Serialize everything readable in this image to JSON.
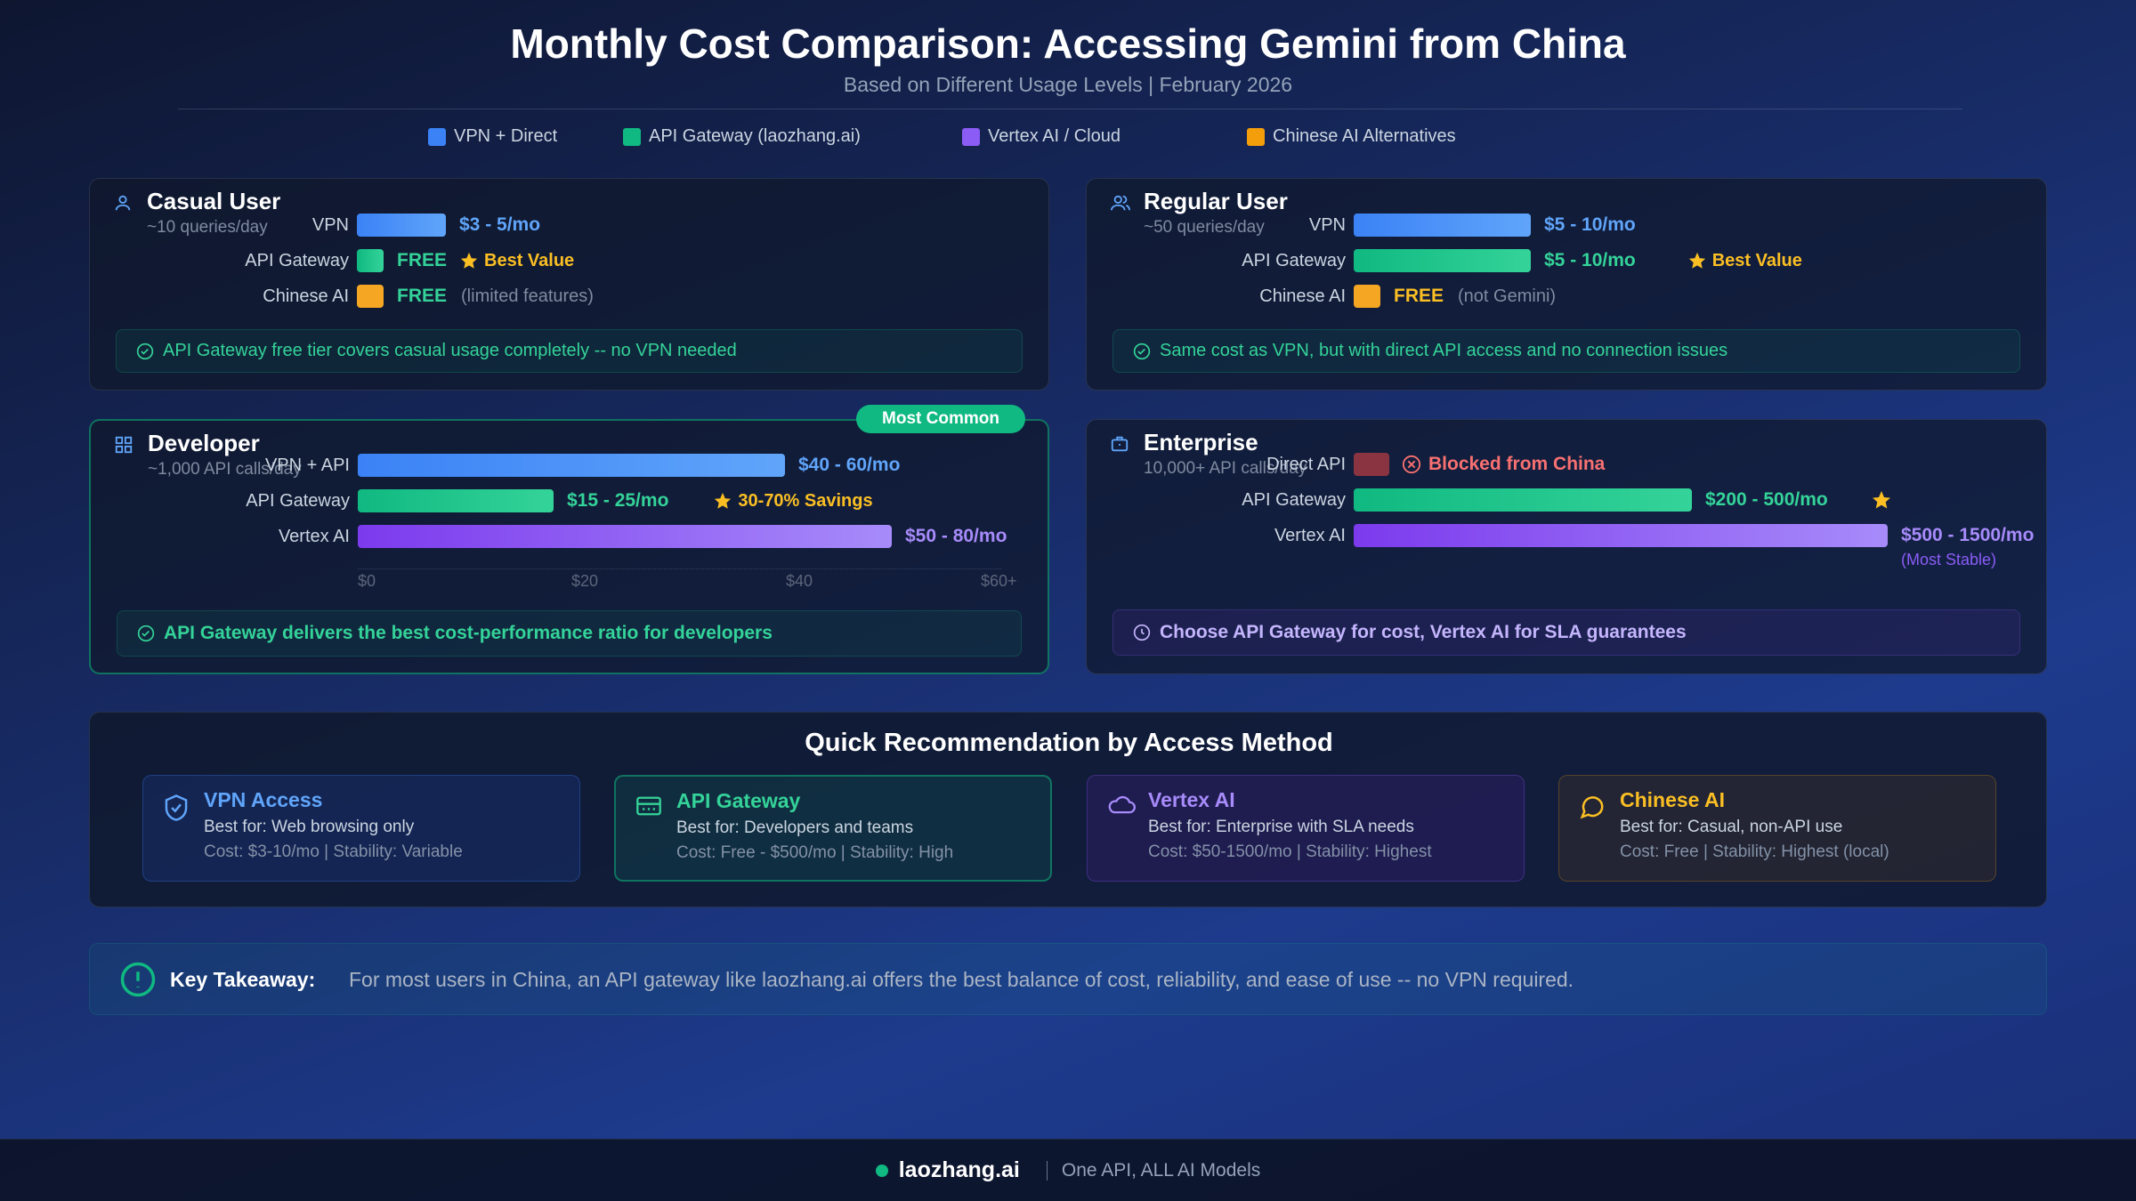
{
  "header": {
    "title": "Monthly Cost Comparison: Accessing Gemini from China",
    "subtitle": "Based on Different Usage Levels | February 2026"
  },
  "legend": [
    "VPN + Direct",
    "API Gateway (laozhang.ai)",
    "Vertex AI / Cloud",
    "Chinese AI Alternatives"
  ],
  "panels": [
    {
      "title": "Casual User",
      "subtitle": "~10 queries/day",
      "rows": [
        {
          "label": "VPN",
          "value": "$3 - 5/mo"
        },
        {
          "label": "API Gateway",
          "value": "FREE",
          "extra": "Best Value"
        },
        {
          "label": "Chinese AI",
          "value": "FREE",
          "extra": "(limited features)"
        }
      ],
      "note": "API Gateway free tier covers casual usage completely -- no VPN needed"
    },
    {
      "title": "Regular User",
      "subtitle": "~50 queries/day",
      "rows": [
        {
          "label": "VPN",
          "value": "$5 - 10/mo"
        },
        {
          "label": "API Gateway",
          "value": "$5 - 10/mo",
          "extra": "Best Value"
        },
        {
          "label": "Chinese AI",
          "value": "FREE",
          "extra": "(not Gemini)"
        }
      ],
      "note": "Same cost as VPN, but with direct API access and no connection issues"
    },
    {
      "title": "Developer",
      "subtitle": "~1,000 API calls/day",
      "badge": "Most Common",
      "rows": [
        {
          "label": "VPN + API",
          "value": "$40 - 60/mo"
        },
        {
          "label": "API Gateway",
          "value": "$15 - 25/mo",
          "extra": "30-70% Savings"
        },
        {
          "label": "Vertex AI",
          "value": "$50 - 80/mo"
        }
      ],
      "axis_labels": [
        "$0",
        "$20",
        "$40",
        "$60+"
      ],
      "note": "API Gateway delivers the best cost-performance ratio for developers"
    },
    {
      "title": "Enterprise",
      "subtitle": "10,000+ API calls/day",
      "rows": [
        {
          "label": "Direct API",
          "value": "Blocked from China"
        },
        {
          "label": "API Gateway",
          "value": "$200 - 500/mo"
        },
        {
          "label": "Vertex AI",
          "value": "$500 - 1500/mo",
          "extra": "(Most Stable)"
        }
      ],
      "note": "Choose API Gateway for cost, Vertex AI for SLA guarantees"
    }
  ],
  "recommendation": {
    "title": "Quick Recommendation by Access Method",
    "cards": [
      {
        "title": "VPN Access",
        "best_for": "Best for: Web browsing only",
        "details": "Cost: $3-10/mo | Stability: Variable"
      },
      {
        "title": "API Gateway",
        "best_for": "Best for: Developers and teams",
        "details": "Cost: Free - $500/mo | Stability: High"
      },
      {
        "title": "Vertex AI",
        "best_for": "Best for: Enterprise with SLA needs",
        "details": "Cost: $50-1500/mo | Stability: Highest"
      },
      {
        "title": "Chinese AI",
        "best_for": "Best for: Casual, non-API use",
        "details": "Cost: Free | Stability: Highest (local)"
      }
    ]
  },
  "takeaway": {
    "label": "Key Takeaway:",
    "text": "For most users in China, an API gateway like laozhang.ai offers the best balance of cost, reliability, and ease of use -- no VPN required."
  },
  "footer": {
    "brand": "laozhang.ai",
    "tagline": "One API, ALL AI Models"
  }
}
